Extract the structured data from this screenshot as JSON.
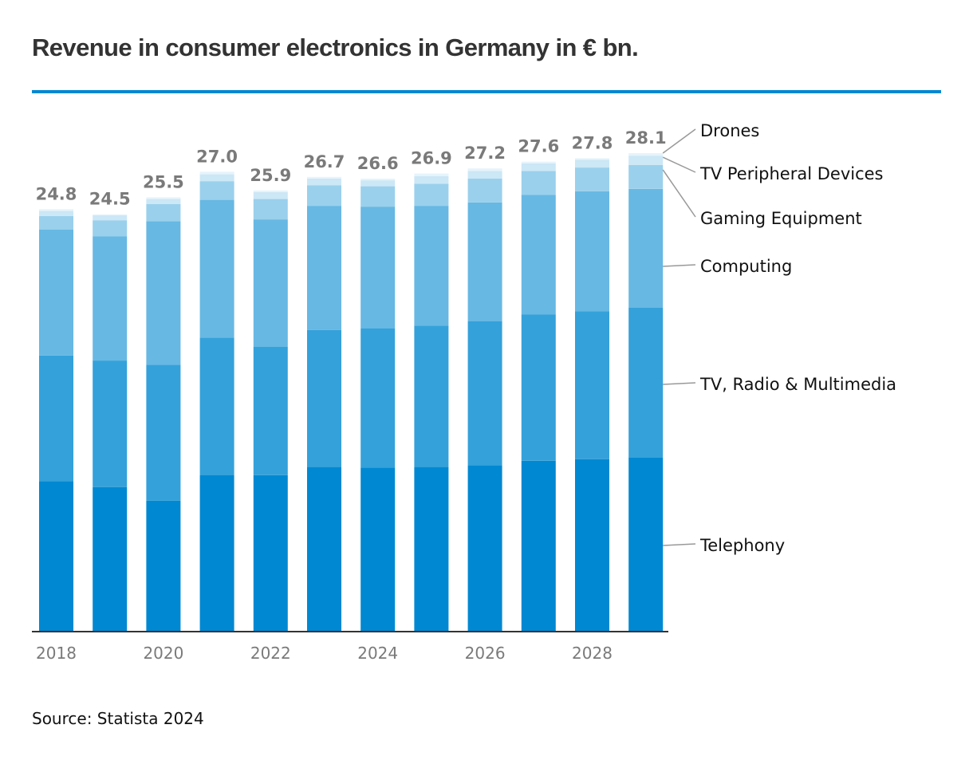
{
  "header": {
    "title": "Revenue in consumer electronics in Germany in € bn."
  },
  "footer": {
    "source": "Source: Statista 2024"
  },
  "chart_data": {
    "type": "bar",
    "stacked": true,
    "title": "Revenue in consumer electronics in Germany in € bn.",
    "xlabel": "",
    "ylabel": "",
    "ylim": [
      0,
      28.1
    ],
    "grid": false,
    "legend_position": "right (direct labels with leader lines)",
    "categories": [
      "2018",
      "2019",
      "2020",
      "2021",
      "2022",
      "2023",
      "2024",
      "2025",
      "2026",
      "2027",
      "2028",
      "2029"
    ],
    "tick_labels": [
      "2018",
      "",
      "2020",
      "",
      "2022",
      "",
      "2024",
      "",
      "2026",
      "",
      "2028",
      ""
    ],
    "totals": [
      24.8,
      24.5,
      25.5,
      27.0,
      25.9,
      26.7,
      26.6,
      26.9,
      27.2,
      27.6,
      27.8,
      28.1
    ],
    "total_labels": [
      "24.8",
      "24.5",
      "25.5",
      "27.0",
      "25.9",
      "26.7",
      "26.6",
      "26.9",
      "27.2",
      "27.6",
      "27.8",
      "28.1"
    ],
    "series": [
      {
        "name": "Telephony",
        "color": "#0088d2",
        "values": [
          8.8,
          8.45,
          7.65,
          9.15,
          9.15,
          9.65,
          9.6,
          9.65,
          9.75,
          10.0,
          10.1,
          10.2
        ]
      },
      {
        "name": "TV, Radio & Multimedia",
        "color": "#34a1da",
        "values": [
          7.4,
          7.45,
          8.0,
          8.1,
          7.55,
          8.05,
          8.2,
          8.3,
          8.45,
          8.6,
          8.7,
          8.8
        ]
      },
      {
        "name": "Computing",
        "color": "#67b8e3",
        "values": [
          7.4,
          7.3,
          8.45,
          8.1,
          7.5,
          7.3,
          7.15,
          7.05,
          7.0,
          7.05,
          7.05,
          7.0
        ]
      },
      {
        "name": "Gaming Equipment",
        "color": "#9ad0ec",
        "values": [
          0.8,
          0.95,
          1.0,
          1.1,
          1.2,
          1.2,
          1.2,
          1.3,
          1.4,
          1.4,
          1.4,
          1.4
        ]
      },
      {
        "name": "TV Peripheral Devices",
        "color": "#cce7f6",
        "values": [
          0.3,
          0.3,
          0.3,
          0.4,
          0.4,
          0.4,
          0.35,
          0.45,
          0.45,
          0.45,
          0.45,
          0.55
        ]
      },
      {
        "name": "Drones",
        "color": "#e6f3fb",
        "values": [
          0.1,
          0.05,
          0.1,
          0.15,
          0.1,
          0.1,
          0.1,
          0.15,
          0.15,
          0.1,
          0.1,
          0.15
        ]
      }
    ],
    "total_label_color": "#7a7a7a",
    "axis_color": "#333333",
    "leader_line_color": "#999999"
  }
}
